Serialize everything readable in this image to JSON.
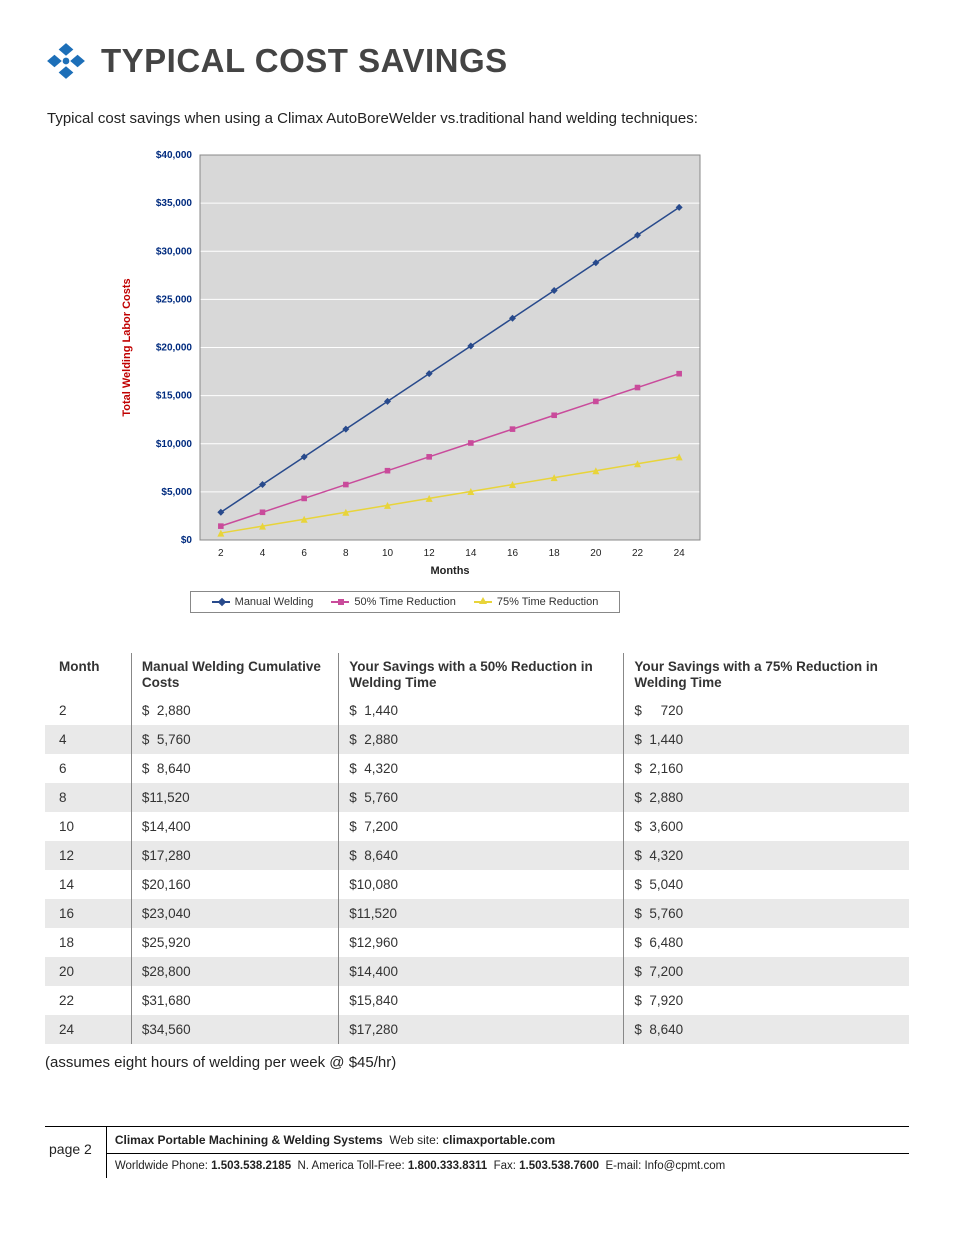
{
  "header": {
    "title": "TYPICAL COST SAVINGS",
    "icon_colors": [
      "#1d6fb8",
      "#1d6fb8",
      "#1d6fb8",
      "#1d6fb8",
      "#1d6fb8"
    ]
  },
  "intro_text": "Typical cost savings when using a Climax AutoBoreWelder vs.traditional hand welding techniques:",
  "chart": {
    "type": "line",
    "background_color": "#d8d8d8",
    "grid_color": "#ffffff",
    "border_color": "#888888",
    "y_axis_title": "Total Welding Labor Costs",
    "y_axis_title_color": "#c00000",
    "y_axis_title_fontsize": 11,
    "x_axis_title": "Months",
    "x_axis_title_fontsize": 11,
    "xlim": [
      2,
      24
    ],
    "ylim": [
      0,
      40000
    ],
    "x_ticks": [
      2,
      4,
      6,
      8,
      10,
      12,
      14,
      16,
      18,
      20,
      22,
      24
    ],
    "y_ticks": [
      0,
      5000,
      10000,
      15000,
      20000,
      25000,
      30000,
      35000,
      40000
    ],
    "y_tick_labels": [
      "$0",
      "$5,000",
      "$10,000",
      "$15,000",
      "$20,000",
      "$25,000",
      "$30,000",
      "$35,000",
      "$40,000"
    ],
    "tick_label_color": "#002b7f",
    "tick_label_fontsize": 10,
    "line_width": 1.5,
    "marker_size": 5,
    "series": [
      {
        "name": "Manual Welding",
        "color": "#284a8c",
        "marker": "diamond",
        "x": [
          2,
          4,
          6,
          8,
          10,
          12,
          14,
          16,
          18,
          20,
          22,
          24
        ],
        "y": [
          2880,
          5760,
          8640,
          11520,
          14400,
          17280,
          20160,
          23040,
          25920,
          28800,
          31680,
          34560
        ]
      },
      {
        "name": "50% Time Reduction",
        "color": "#c94b9b",
        "marker": "square",
        "x": [
          2,
          4,
          6,
          8,
          10,
          12,
          14,
          16,
          18,
          20,
          22,
          24
        ],
        "y": [
          1440,
          2880,
          4320,
          5760,
          7200,
          8640,
          10080,
          11520,
          12960,
          14400,
          15840,
          17280
        ]
      },
      {
        "name": "75% Time Reduction",
        "color": "#e8d43a",
        "marker": "triangle",
        "x": [
          2,
          4,
          6,
          8,
          10,
          12,
          14,
          16,
          18,
          20,
          22,
          24
        ],
        "y": [
          720,
          1440,
          2160,
          2880,
          3600,
          4320,
          5040,
          5760,
          6480,
          7200,
          7920,
          8640
        ]
      }
    ]
  },
  "legend": {
    "items": [
      {
        "label": "Manual Welding",
        "color": "#284a8c",
        "marker": "diamond"
      },
      {
        "label": "50% Time Reduction",
        "color": "#c94b9b",
        "marker": "square"
      },
      {
        "label": "75% Time Reduction",
        "color": "#e8d43a",
        "marker": "triangle"
      }
    ]
  },
  "table": {
    "columns": [
      "Month",
      "Manual Welding Cumulative Costs",
      "Your Savings with a 50% Reduction in Welding Time",
      "Your Savings with a 75% Reduction in Welding Time"
    ],
    "rows": [
      [
        "2",
        "$  2,880",
        "$  1,440",
        "$     720"
      ],
      [
        "4",
        "$  5,760",
        "$  2,880",
        "$  1,440"
      ],
      [
        "6",
        "$  8,640",
        "$  4,320",
        "$  2,160"
      ],
      [
        "8",
        "$11,520",
        "$  5,760",
        "$  2,880"
      ],
      [
        "10",
        "$14,400",
        "$  7,200",
        "$  3,600"
      ],
      [
        "12",
        "$17,280",
        "$  8,640",
        "$  4,320"
      ],
      [
        "14",
        "$20,160",
        "$10,080",
        "$  5,040"
      ],
      [
        "16",
        "$23,040",
        "$11,520",
        "$  5,760"
      ],
      [
        "18",
        "$25,920",
        "$12,960",
        "$  6,480"
      ],
      [
        "20",
        "$28,800",
        "$14,400",
        "$  7,200"
      ],
      [
        "22",
        "$31,680",
        "$15,840",
        "$  7,920"
      ],
      [
        "24",
        "$34,560",
        "$17,280",
        "$  8,640"
      ]
    ],
    "column_widths": [
      "10%",
      "24%",
      "33%",
      "33%"
    ],
    "row_stripe_color": "#e9e9e9",
    "note": "(assumes eight hours of welding per week @ $45/hr)"
  },
  "footer": {
    "page_label": "page 2",
    "company": "Climax Portable Machining & Welding Systems",
    "web_label": "Web site:",
    "web_site": "climaxportable.com",
    "phone_label": "Worldwide Phone:",
    "phone": "1.503.538.2185",
    "tollfree_label": "N. America Toll-Free:",
    "tollfree": "1.800.333.8311",
    "fax_label": "Fax:",
    "fax": "1.503.538.7600",
    "email_label": "E-mail:",
    "email": "Info@cpmt.com"
  }
}
